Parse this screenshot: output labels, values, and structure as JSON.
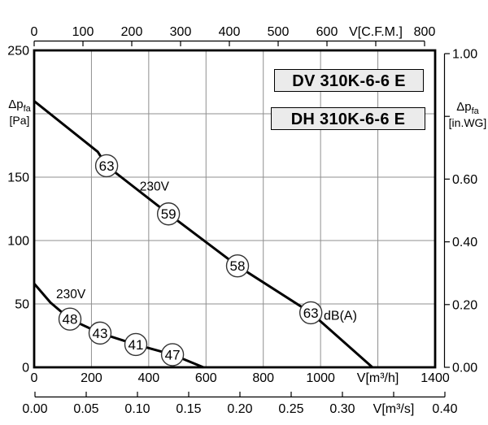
{
  "chart_data": {
    "type": "line",
    "title_boxes": [
      "DV 310K-6-6 E",
      "DH 310K-6-6 E"
    ],
    "axes": {
      "x_top": {
        "unit_label": "V[C.F.M.]",
        "range": [
          0,
          800
        ],
        "step": 100,
        "tick_labels": [
          "0",
          "100",
          "200",
          "300",
          "400",
          "500",
          "600",
          "V[C.F.M.]",
          "800"
        ]
      },
      "x_bottom": {
        "unit_label": "V[m³/h]",
        "range": [
          0,
          1400
        ],
        "step": 200,
        "tick_labels": [
          "0",
          "200",
          "400",
          "600",
          "800",
          "1000",
          "V[m³/h]",
          "1400"
        ]
      },
      "x_secondary": {
        "unit_label": "V[m³/s]",
        "range": [
          0,
          0.4
        ],
        "step": 0.05,
        "tick_labels": [
          "0.00",
          "0.05",
          "0.10",
          "0.15",
          "0.20",
          "0.25",
          "0.30",
          "V[m³/s]",
          "0.40"
        ]
      },
      "y_left": {
        "symbol": "Δp",
        "subscript": "fa",
        "unit": "[Pa]",
        "range": [
          0,
          250
        ],
        "step": 50,
        "tick_labels": [
          "0",
          "50",
          "100",
          "150",
          "",
          "250"
        ]
      },
      "y_right": {
        "symbol": "Δp",
        "subscript": "fa",
        "unit": "[in.WG]",
        "range": [
          0.0,
          1.0
        ],
        "step": 0.2,
        "tick_labels": [
          "0.00",
          "0.20",
          "0.40",
          "0.60",
          "",
          "1.00"
        ]
      }
    },
    "grid": {
      "x_values": [
        200,
        400,
        600,
        800,
        1000,
        1200
      ],
      "y_values": [
        50,
        100,
        150,
        200
      ]
    },
    "series": [
      {
        "name": "fan-curve-high-speed",
        "voltage_label": "230V",
        "voltage_label_pos": [
          420,
          143
        ],
        "points": [
          [
            0,
            210
          ],
          [
            222,
            170
          ],
          [
            253,
            159
          ],
          [
            469,
            121
          ],
          [
            710,
            80
          ],
          [
            966,
            43
          ],
          [
            1181,
            0
          ]
        ],
        "noise_markers": [
          {
            "db": "63",
            "pos": [
              253,
              159
            ]
          },
          {
            "db": "59",
            "pos": [
              469,
              121
            ]
          },
          {
            "db": "58",
            "pos": [
              710,
              80
            ]
          },
          {
            "db": "63",
            "pos": [
              966,
              43
            ]
          }
        ]
      },
      {
        "name": "fan-curve-low-speed",
        "voltage_label": "230V",
        "voltage_label_pos": [
          128,
          58
        ],
        "points": [
          [
            0,
            66
          ],
          [
            57,
            51
          ],
          [
            125,
            38
          ],
          [
            230,
            27
          ],
          [
            355,
            18
          ],
          [
            483,
            10
          ],
          [
            591,
            0
          ]
        ],
        "noise_markers": [
          {
            "db": "48",
            "pos": [
              125,
              38
            ]
          },
          {
            "db": "43",
            "pos": [
              230,
              27
            ]
          },
          {
            "db": "41",
            "pos": [
              355,
              18
            ]
          },
          {
            "db": "47",
            "pos": [
              483,
              10
            ]
          }
        ]
      }
    ],
    "noise_unit_label": {
      "text": "dB(A)",
      "pos": [
        1011,
        41
      ]
    },
    "colors": {
      "curve": "#000000",
      "grid": "#8f8f8f",
      "axis": "#000000",
      "box_fill": "#ebebeb",
      "circle_fill": "#ffffff",
      "circle_stroke": "#333333",
      "text": "#000000"
    }
  }
}
